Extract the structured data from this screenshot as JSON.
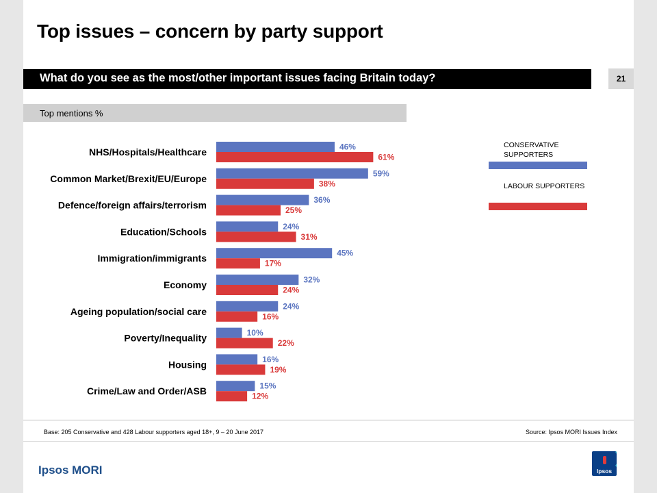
{
  "title": "Top issues – concern by party support",
  "question": "What do you see as the most/other important issues facing Britain today?",
  "page_number": "21",
  "mentions_label": "Top mentions %",
  "legend": {
    "conservative": "CONSERVATIVE SUPPORTERS",
    "labour": "LABOUR SUPPORTERS"
  },
  "colors": {
    "conservative": "#5b75c0",
    "labour": "#d93a3a",
    "conservative_text": "#5b75c0",
    "labour_text": "#d93a3a"
  },
  "chart_data": {
    "type": "bar",
    "orientation": "horizontal",
    "categories": [
      "NHS/Hospitals/Healthcare",
      "Common Market/Brexit/EU/Europe",
      "Defence/foreign affairs/terrorism",
      "Education/Schools",
      "Immigration/immigrants",
      "Economy",
      "Ageing population/social care",
      "Poverty/Inequality",
      "Housing",
      "Crime/Law and Order/ASB"
    ],
    "series": [
      {
        "name": "CONSERVATIVE SUPPORTERS",
        "values": [
          46,
          59,
          36,
          24,
          45,
          32,
          24,
          10,
          16,
          15
        ]
      },
      {
        "name": "LABOUR SUPPORTERS",
        "values": [
          61,
          38,
          25,
          31,
          17,
          24,
          16,
          22,
          19,
          12
        ]
      }
    ],
    "value_suffix": "%",
    "xlim": [
      0,
      100
    ],
    "grid": false,
    "legend_position": "right"
  },
  "footer": {
    "base": "Base: 205 Conservative and 428 Labour supporters aged 18+, 9 – 20 June 2017",
    "source": "Source: Ipsos MORI Issues Index"
  },
  "brand": "Ipsos MORI",
  "logo_text": "Ipsos"
}
